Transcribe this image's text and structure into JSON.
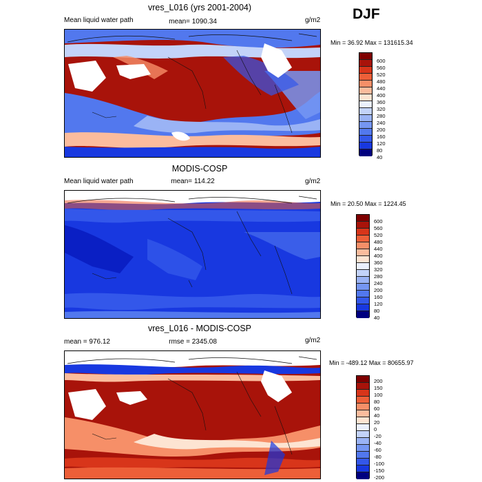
{
  "season": "DJF",
  "units": "g/m2",
  "panels": [
    {
      "title": "vres_L016 (yrs 2001-2004)",
      "left_label": "Mean liquid water path",
      "center_label": "mean= 1090.34",
      "minmax": "Min =  36.92 Max = 131615.34",
      "colorbar": [
        "600",
        "560",
        "520",
        "480",
        "440",
        "400",
        "360",
        "320",
        "280",
        "240",
        "200",
        "160",
        "120",
        "80",
        "40"
      ]
    },
    {
      "title": "MODIS-COSP",
      "left_label": "Mean liquid water path",
      "center_label": "mean= 114.22",
      "minmax": "Min =  20.50 Max = 1224.45",
      "colorbar": [
        "600",
        "560",
        "520",
        "480",
        "440",
        "400",
        "360",
        "320",
        "280",
        "240",
        "200",
        "160",
        "120",
        "80",
        "40"
      ]
    },
    {
      "title": "vres_L016 - MODIS-COSP",
      "left_label": "mean = 976.12",
      "center_label": "rmse = 2345.08",
      "minmax": "Min = -489.12 Max = 80655.97",
      "colorbar": [
        "200",
        "150",
        "100",
        "80",
        "60",
        "40",
        "20",
        "0",
        "-20",
        "-40",
        "-60",
        "-80",
        "-100",
        "-150",
        "-200"
      ]
    }
  ],
  "colors": {
    "scale": [
      "#00007f",
      "#0a1fc4",
      "#1838e0",
      "#3357ea",
      "#5278ee",
      "#7596f2",
      "#9ab3f5",
      "#c3d3f9",
      "#ebf0fd",
      "#fde4d2",
      "#fbbc9d",
      "#f68f68",
      "#ed5f38",
      "#d8351a",
      "#a8130a",
      "#7f0000"
    ],
    "land_mask": "#ffffff",
    "coast": "#111111"
  }
}
